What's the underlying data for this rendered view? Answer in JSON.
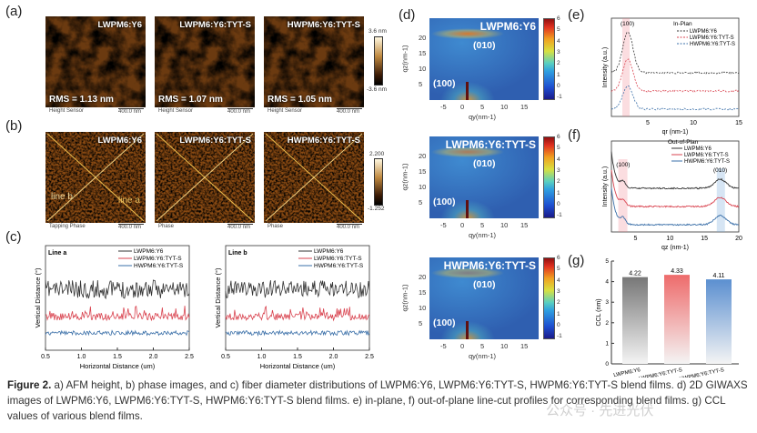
{
  "panel_labels": {
    "a": "(a)",
    "b": "(b)",
    "c": "(c)",
    "d": "(d)",
    "e": "(e)",
    "f": "(f)",
    "g": "(g)"
  },
  "afm_height": {
    "images": [
      {
        "title": "LWPM6:Y6",
        "rms": "RMS = 1.13 nm",
        "caption": "Height Sensor",
        "scale": "400.0 nm"
      },
      {
        "title": "LWPM6:Y6:TYT-S",
        "rms": "RMS = 1.07 nm",
        "caption": "Height Sensor",
        "scale": "400.0 nm"
      },
      {
        "title": "HWPM6:Y6:TYT-S",
        "rms": "RMS = 1.05 nm",
        "caption": "Height Sensor",
        "scale": "400.0 nm"
      }
    ],
    "colorbar": {
      "max": "3.6 nm",
      "min": "-3.6 nm"
    }
  },
  "afm_phase": {
    "images": [
      {
        "title": "LWPM6:Y6",
        "caption": "Tapping Phase",
        "scale": "400.0 nm",
        "line_b": "line b",
        "line_a": "line a"
      },
      {
        "title": "LWPM6:Y6:TYT-S",
        "caption": "Phase",
        "scale": "400.0 nm"
      },
      {
        "title": "HWPM6:Y6:TYT-S",
        "caption": "Phase",
        "scale": "400.0 nm"
      }
    ],
    "colorbar": {
      "max": "2.200",
      "min": "-1.252"
    }
  },
  "giwaxs": {
    "images": [
      {
        "title": "LWPM6:Y6"
      },
      {
        "title": "LWPM6:Y6:TYT-S"
      },
      {
        "title": "HWPM6:Y6:TYT-S"
      }
    ],
    "peak_010": "(010)",
    "peak_100": "(100)",
    "xlabel": "qy(nm-1)",
    "ylabel": "qz(nm-1)",
    "xticks": [
      "-5",
      "0",
      "5",
      "10",
      "15"
    ],
    "yticks": [
      "5",
      "10",
      "15",
      "20"
    ],
    "colorbar_ticks": [
      "6",
      "5",
      "4",
      "3",
      "2",
      "1",
      "0",
      "-1"
    ]
  },
  "colors": {
    "LWPM6:Y6": "#333333",
    "LWPM6:Y6:TYT-S": "#d9434f",
    "HWPM6:Y6:TYT-S": "#3a6fa8"
  },
  "chart_data": [
    {
      "type": "line",
      "panel": "c-left",
      "annotation": "Line a",
      "xlabel": "Horizontal Distance (um)",
      "ylabel": "Vertical Distance (°)",
      "xlim": [
        0.5,
        2.5
      ],
      "xticks": [
        "0.5",
        "1.0",
        "1.5",
        "2.0",
        "2.5"
      ],
      "series": [
        {
          "name": "LWPM6:Y6"
        },
        {
          "name": "LWPM6:Y6:TYT-S"
        },
        {
          "name": "HWPM6:Y6:TYT-S"
        }
      ]
    },
    {
      "type": "line",
      "panel": "c-right",
      "annotation": "Line b",
      "xlabel": "Horizontal Distance (um)",
      "ylabel": "Vertical Distance (°)",
      "xlim": [
        0.5,
        2.5
      ],
      "xticks": [
        "0.5",
        "1.0",
        "1.5",
        "2.0",
        "2.5"
      ],
      "series": [
        {
          "name": "LWPM6:Y6"
        },
        {
          "name": "LWPM6:Y6:TYT-S"
        },
        {
          "name": "HWPM6:Y6:TYT-S"
        }
      ]
    },
    {
      "type": "line",
      "panel": "e",
      "annotation": "In-Plan",
      "peak": "(100)",
      "xlabel": "qr (nm-1)",
      "ylabel": "Intensity (a.u.)",
      "xlim": [
        1,
        15
      ],
      "xticks": [
        "5",
        "10",
        "15"
      ],
      "series": [
        {
          "name": "LWPM6:Y6"
        },
        {
          "name": "LWPM6:Y6:TYT-S"
        },
        {
          "name": "HWPM6:Y6:TYT-S"
        }
      ]
    },
    {
      "type": "line",
      "panel": "f",
      "annotation": "Out-of-Plan",
      "peaks": [
        "(100)",
        "(010)"
      ],
      "xlabel": "qz (nm-1)",
      "ylabel": "Intensity (a.u.)",
      "xlim": [
        1.5,
        20
      ],
      "xticks": [
        "5",
        "10",
        "15",
        "20"
      ],
      "series": [
        {
          "name": "LWPM6:Y6"
        },
        {
          "name": "LWPM6:Y6:TYT-S"
        },
        {
          "name": "HWPM6:Y6:TYT-S"
        }
      ]
    },
    {
      "type": "bar",
      "panel": "g",
      "categories": [
        "LWPM6:Y6",
        "LWPM6:Y6:TYT-S",
        "HWPM6:Y6:TYT-S"
      ],
      "values": [
        4.22,
        4.33,
        4.11
      ],
      "labels": [
        "4.22",
        "4.33",
        "4.11"
      ],
      "ylabel": "CCL (nm)",
      "ylim": [
        0,
        5
      ],
      "yticks": [
        "0",
        "1",
        "2",
        "3",
        "4",
        "5"
      ],
      "bar_colors": [
        "#777777",
        "#ee6b6b",
        "#5b8fd0"
      ]
    }
  ],
  "caption": {
    "label": "Figure 2.",
    "text": " a) AFM height, b) phase images, and c) fiber diameter distributions of LWPM6:Y6, LWPM6:Y6:TYT-S, HWPM6:Y6:TYT-S blend films. d) 2D GIWAXS images of LWPM6:Y6, LWPM6:Y6:TYT-S, HWPM6:Y6:TYT-S blend films. e) in-plane, f) out-of-plane line-cut profiles for corresponding blend films. g) CCL values of various blend films."
  },
  "watermark": "公众号 · 先进光伏"
}
